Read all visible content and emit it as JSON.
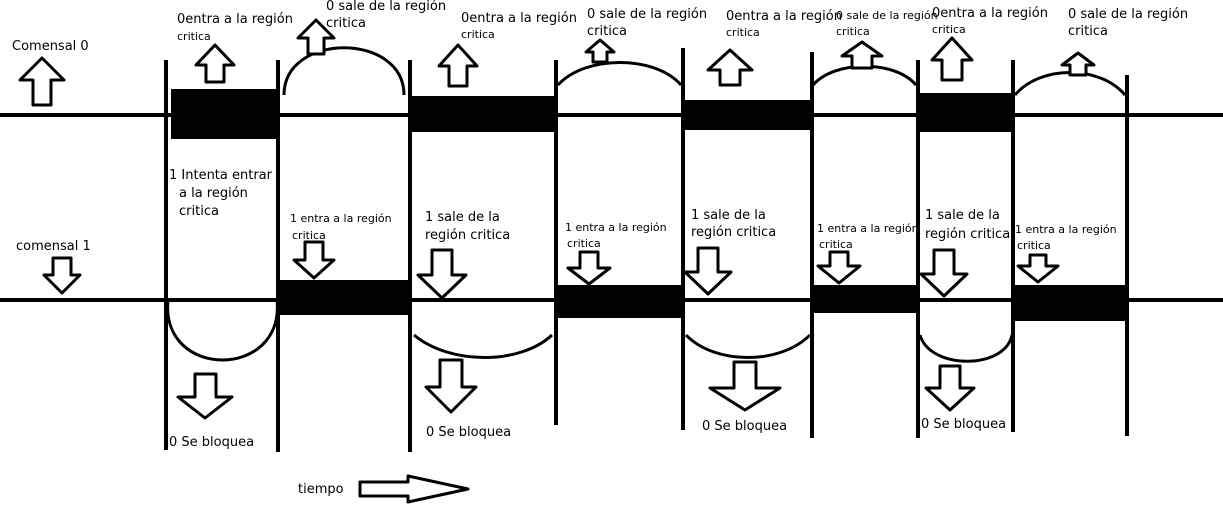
{
  "diagram": {
    "threads": {
      "comensal0": "Comensal 0",
      "comensal1": "comensal 1"
    },
    "time_label": "tiempo",
    "top_labels": [
      {
        "line1": "0entra a la región",
        "line2": "critica"
      },
      {
        "line1": "0 sale de la región",
        "line2": "critica"
      },
      {
        "line1": "0entra a la región",
        "line2": "critica"
      },
      {
        "line1": "0 sale de la región",
        "line2": "critica"
      },
      {
        "line1": "0entra a la región",
        "line2": "critica"
      },
      {
        "line1": "0 sale de la región",
        "line2": "critica"
      },
      {
        "line1": "0entra a la región",
        "line2": "critica"
      },
      {
        "line1": "0 sale de la región",
        "line2": "critica"
      }
    ],
    "mid_labels": [
      {
        "line1": "1 Intenta entrar",
        "line2": "a la región",
        "line3": "critica"
      },
      {
        "line1": "1 entra a la región",
        "line2": "critica"
      },
      {
        "line1": "1 sale de la",
        "line2": "región critica"
      },
      {
        "line1": "1 entra a la región",
        "line2": "critica"
      },
      {
        "line1": "1 sale de la",
        "line2": "región critica"
      },
      {
        "line1": "1 entra a la región",
        "line2": "critica"
      },
      {
        "line1": "1 sale de la",
        "line2": "región critica"
      },
      {
        "line1": "1 entra a la región",
        "line2": "critica"
      }
    ],
    "bottom_labels": [
      "0 Se bloquea",
      "0 Se bloquea",
      "0 Se bloquea",
      "0 Se bloquea"
    ]
  }
}
